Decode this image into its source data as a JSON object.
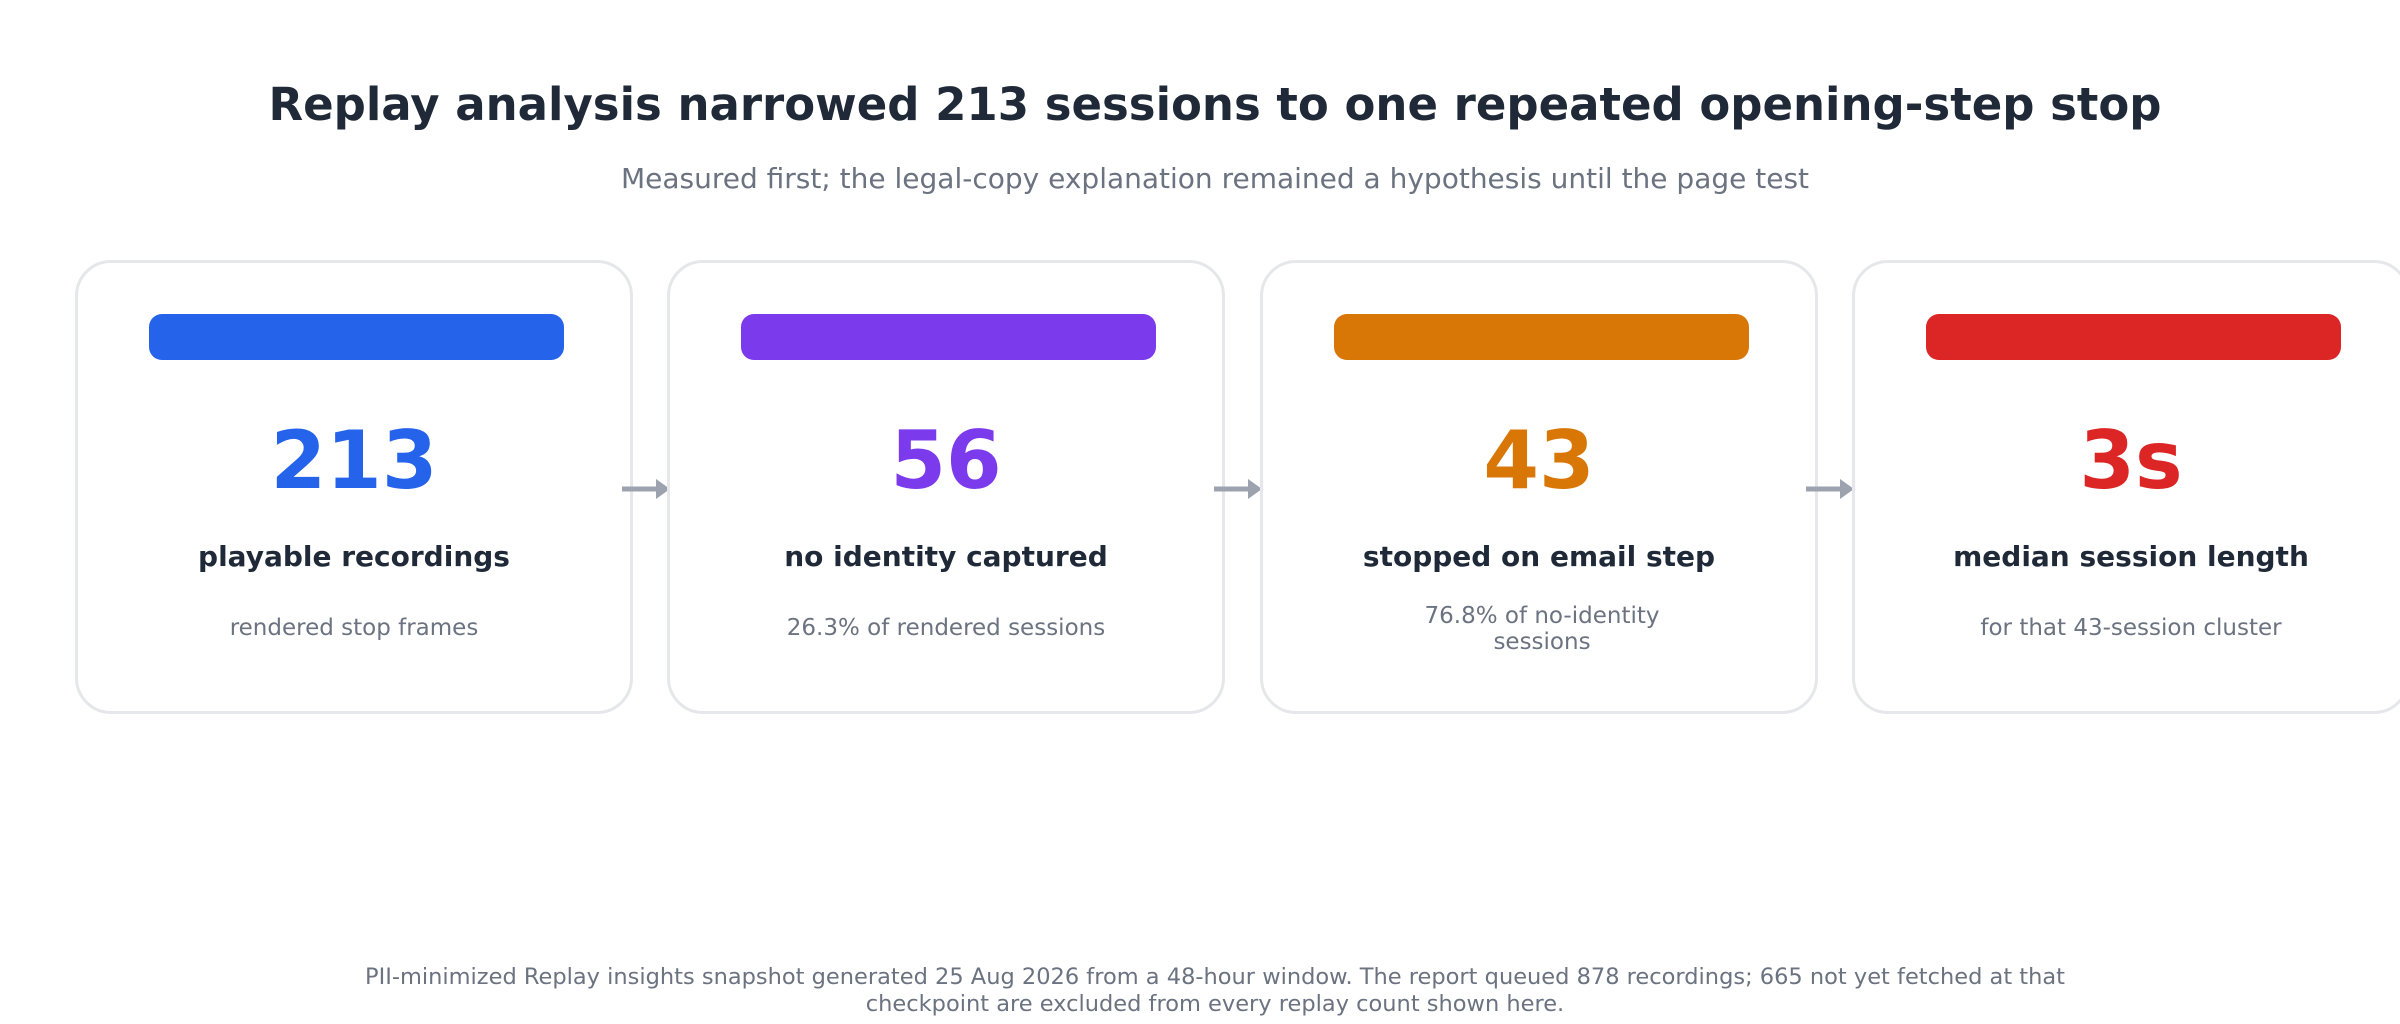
{
  "title": "Replay analysis narrowed 213 sessions to one repeated opening-step stop",
  "subtitle": "Measured first; the legal-copy explanation remained a hypothesis until the page test",
  "cards": [
    {
      "value": "213",
      "label": "playable recordings",
      "note": "rendered stop frames",
      "color": "#2563eb"
    },
    {
      "value": "56",
      "label": "no identity captured",
      "note": "26.3% of rendered sessions",
      "color": "#7c3aed"
    },
    {
      "value": "43",
      "label": "stopped on email step",
      "note": "76.8% of no-identity sessions",
      "color": "#d97706"
    },
    {
      "value": "3s",
      "label": "median session length",
      "note": "for that 43-session cluster",
      "color": "#dc2626"
    }
  ],
  "footer": "PII-minimized Replay insights snapshot generated 25 Aug 2026 from a 48-hour window. The report queued 878 recordings; 665 not yet fetched at that checkpoint are excluded from every replay count shown here."
}
